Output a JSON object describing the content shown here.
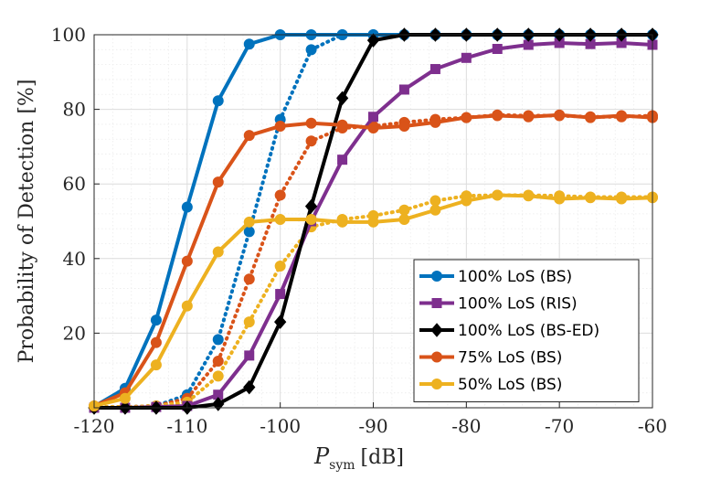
{
  "chart_data": {
    "type": "line",
    "title": "",
    "xlabel_main": "P",
    "xlabel_sub": "sym",
    "xlabel_unit": "[dB]",
    "ylabel": "Probability of Detection [%]",
    "xlim": [
      -120,
      -60
    ],
    "ylim": [
      0,
      100
    ],
    "xticks": [
      -120,
      -110,
      -100,
      -90,
      -80,
      -70,
      -60
    ],
    "yticks": [
      20,
      40,
      60,
      80,
      100
    ],
    "grid": true,
    "minor_grid": true,
    "legend_position": "bottom-right",
    "x": [
      -120,
      -116.67,
      -113.33,
      -110,
      -106.67,
      -103.33,
      -100,
      -96.67,
      -93.33,
      -90,
      -86.67,
      -83.33,
      -80,
      -76.67,
      -73.33,
      -70,
      -66.67,
      -63.33,
      -60
    ],
    "series": [
      {
        "name": "100% LoS (BS)",
        "color": "#0072BD",
        "marker": "circle",
        "style": "solid",
        "values": [
          0.3,
          5.2,
          23.5,
          53.8,
          82.3,
          97.5,
          100,
          100,
          100,
          100,
          100,
          100,
          100,
          100,
          100,
          100,
          100,
          100,
          100
        ]
      },
      {
        "name": "100% LoS (BS) dotted",
        "color": "#0072BD",
        "marker": "circle",
        "style": "dotted",
        "legend": false,
        "values": [
          0.2,
          0.2,
          0.5,
          3.5,
          18.3,
          47.2,
          77.3,
          96.0,
          100,
          100,
          100,
          100,
          100,
          100,
          100,
          100,
          100,
          100,
          100
        ]
      },
      {
        "name": "100% LoS (RIS)",
        "color": "#7E2F8E",
        "marker": "square",
        "style": "solid",
        "values": [
          0.0,
          0.0,
          0.2,
          0.5,
          3.5,
          14.0,
          30.5,
          50.0,
          66.5,
          78.0,
          85.3,
          90.8,
          93.8,
          96.2,
          97.3,
          97.8,
          97.5,
          97.8,
          97.3
        ]
      },
      {
        "name": "100% LoS (BS-ED)",
        "color": "#000000",
        "marker": "diamond",
        "style": "solid",
        "values": [
          0.0,
          0.0,
          0.0,
          0.0,
          1.0,
          5.5,
          23.0,
          54.0,
          83.0,
          98.5,
          100,
          100,
          100,
          100,
          100,
          100,
          100,
          100,
          100
        ]
      },
      {
        "name": "75% LoS (BS)",
        "color": "#D95319",
        "marker": "circle",
        "style": "solid",
        "values": [
          0.5,
          4.0,
          17.5,
          39.3,
          60.5,
          73.0,
          75.5,
          76.3,
          75.8,
          75.0,
          75.5,
          76.5,
          77.8,
          78.3,
          78.0,
          78.5,
          77.8,
          78.3,
          77.8
        ]
      },
      {
        "name": "75% LoS (BS) dotted",
        "color": "#D95319",
        "marker": "circle",
        "style": "dotted",
        "legend": false,
        "values": [
          0.2,
          0.2,
          0.5,
          2.5,
          12.5,
          34.5,
          57.0,
          71.5,
          75.0,
          75.5,
          76.5,
          77.3,
          77.8,
          78.5,
          78.3,
          78.3,
          78.0,
          78.0,
          78.3
        ]
      },
      {
        "name": "50% LoS (BS)",
        "color": "#EDB120",
        "marker": "circle",
        "style": "solid",
        "values": [
          0.5,
          2.5,
          11.5,
          27.3,
          41.8,
          49.8,
          50.5,
          50.5,
          49.8,
          49.8,
          50.5,
          53.0,
          55.5,
          57.0,
          56.8,
          56.0,
          56.3,
          56.0,
          56.3
        ]
      },
      {
        "name": "50% LoS (BS) dotted",
        "color": "#EDB120",
        "marker": "circle",
        "style": "dotted",
        "legend": false,
        "values": [
          0.2,
          0.2,
          0.5,
          1.5,
          8.5,
          23.0,
          38.0,
          48.5,
          50.5,
          51.5,
          53.0,
          55.5,
          56.8,
          57.0,
          57.0,
          56.8,
          56.5,
          56.5,
          56.5
        ]
      }
    ]
  }
}
